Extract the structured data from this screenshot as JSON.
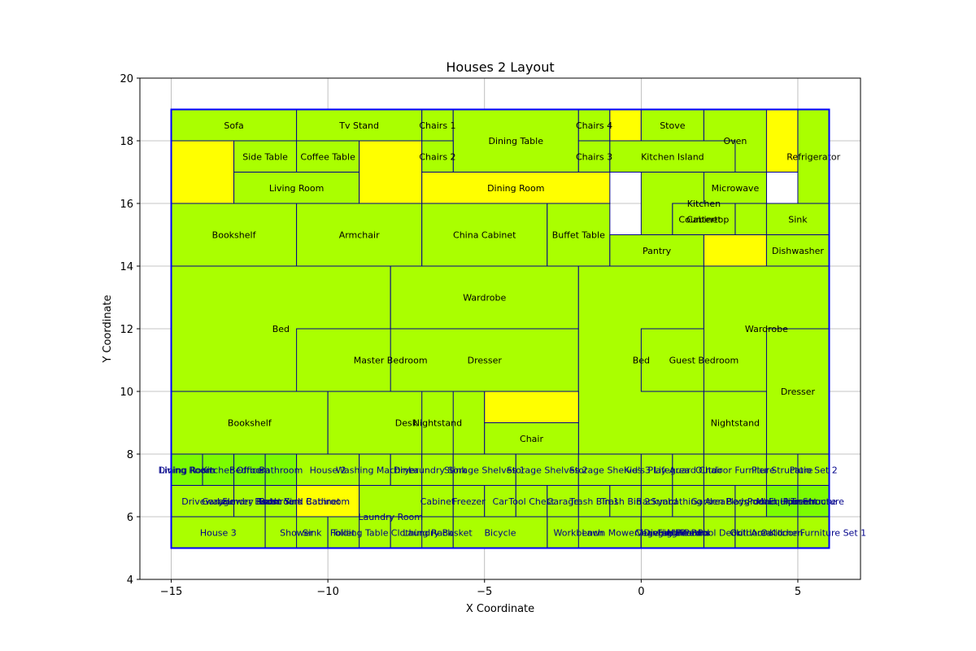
{
  "chart_data": {
    "type": "layout",
    "title": "Houses 2 Layout",
    "xlabel": "X Coordinate",
    "ylabel": "Y Coordinate",
    "xlim": [
      -16,
      7
    ],
    "ylim": [
      4,
      20
    ],
    "xticks": [
      -15,
      -10,
      -5,
      0,
      5
    ],
    "yticks": [
      4,
      6,
      8,
      10,
      12,
      14,
      16,
      18,
      20
    ],
    "grid": true,
    "colors": {
      "fill_main": "#aaff00",
      "fill_yellow": "#ffff00",
      "fill_green": "#7cfc00",
      "edge_outer": "#0000ff",
      "edge_inner": "#00008b",
      "grid": "#b0b0b0"
    },
    "rooms": [
      {
        "name": "Sofa",
        "x": [
          -15,
          -11
        ],
        "y": [
          18,
          19
        ],
        "fill": "main"
      },
      {
        "name": "Tv Stand",
        "x": [
          -11,
          -7
        ],
        "y": [
          18,
          19
        ],
        "fill": "main"
      },
      {
        "name": "Chairs 1",
        "x": [
          -7,
          -6
        ],
        "y": [
          18,
          19
        ],
        "fill": "main"
      },
      {
        "name": "Dining Table",
        "x": [
          -6,
          -2
        ],
        "y": [
          17,
          19
        ],
        "fill": "main"
      },
      {
        "name": "Chairs 4",
        "x": [
          -2,
          -1
        ],
        "y": [
          18,
          19
        ],
        "fill": "main"
      },
      {
        "name": "",
        "x": [
          -1,
          0
        ],
        "y": [
          18,
          19
        ],
        "fill": "yellow"
      },
      {
        "name": "Stove",
        "x": [
          0,
          2
        ],
        "y": [
          18,
          19
        ],
        "fill": "main"
      },
      {
        "name": "Oven",
        "x": [
          2,
          4
        ],
        "y": [
          17,
          19
        ],
        "fill": "main"
      },
      {
        "name": "",
        "x": [
          4,
          5
        ],
        "y": [
          17,
          19
        ],
        "fill": "yellow"
      },
      {
        "name": "Refrigerator",
        "x": [
          5,
          6
        ],
        "y": [
          16,
          19
        ],
        "fill": "main"
      },
      {
        "name": "",
        "x": [
          -15,
          -13
        ],
        "y": [
          16,
          18
        ],
        "fill": "yellow"
      },
      {
        "name": "Side Table",
        "x": [
          -13,
          -11
        ],
        "y": [
          17,
          18
        ],
        "fill": "main"
      },
      {
        "name": "Coffee Table",
        "x": [
          -11,
          -9
        ],
        "y": [
          17,
          18
        ],
        "fill": "main"
      },
      {
        "name": "Living Room",
        "x": [
          -13,
          -9
        ],
        "y": [
          16,
          17
        ],
        "fill": "main"
      },
      {
        "name": "",
        "x": [
          -9,
          -7
        ],
        "y": [
          16,
          18
        ],
        "fill": "yellow"
      },
      {
        "name": "Chairs 2",
        "x": [
          -7,
          -6
        ],
        "y": [
          17,
          18
        ],
        "fill": "main"
      },
      {
        "name": "Chairs 3",
        "x": [
          -2,
          -1
        ],
        "y": [
          17,
          18
        ],
        "fill": "main"
      },
      {
        "name": "Kitchen Island",
        "x": [
          -1,
          3
        ],
        "y": [
          17,
          18
        ],
        "fill": "main"
      },
      {
        "name": "Dining Room",
        "x": [
          -7,
          -1
        ],
        "y": [
          16,
          17
        ],
        "fill": "yellow"
      },
      {
        "name": "Kitchen",
        "x": [
          0,
          4
        ],
        "y": [
          15,
          17
        ],
        "fill": "main"
      },
      {
        "name": "Microwave",
        "x": [
          2,
          4
        ],
        "y": [
          16,
          17
        ],
        "fill": "main"
      },
      {
        "name": "Cabinet",
        "x": [
          1,
          3
        ],
        "y": [
          15,
          16
        ],
        "fill": "main"
      },
      {
        "name": "Countertop",
        "x": [
          1,
          3
        ],
        "y": [
          15,
          16
        ],
        "fill": "main"
      },
      {
        "name": "Bookshelf",
        "x": [
          -15,
          -11
        ],
        "y": [
          14,
          16
        ],
        "fill": "main"
      },
      {
        "name": "Armchair",
        "x": [
          -11,
          -7
        ],
        "y": [
          14,
          16
        ],
        "fill": "main"
      },
      {
        "name": "China Cabinet",
        "x": [
          -7,
          -3
        ],
        "y": [
          14,
          16
        ],
        "fill": "main"
      },
      {
        "name": "Buffet Table",
        "x": [
          -3,
          -1
        ],
        "y": [
          14,
          16
        ],
        "fill": "main"
      },
      {
        "name": "Sink",
        "x": [
          4,
          6
        ],
        "y": [
          15,
          16
        ],
        "fill": "main"
      },
      {
        "name": "Pantry",
        "x": [
          -1,
          2
        ],
        "y": [
          14,
          15
        ],
        "fill": "main"
      },
      {
        "name": "",
        "x": [
          2,
          4
        ],
        "y": [
          14,
          15
        ],
        "fill": "yellow"
      },
      {
        "name": "Dishwasher",
        "x": [
          4,
          6
        ],
        "y": [
          14,
          15
        ],
        "fill": "main"
      },
      {
        "name": "Bed",
        "x": [
          -15,
          -8
        ],
        "y": [
          10,
          14
        ],
        "fill": "main"
      },
      {
        "name": "Wardrobe",
        "x": [
          -8,
          -2
        ],
        "y": [
          12,
          14
        ],
        "fill": "main"
      },
      {
        "name": "Master Bedroom",
        "x": [
          -11,
          -5
        ],
        "y": [
          10,
          12
        ],
        "fill": "main"
      },
      {
        "name": "Dresser",
        "x": [
          -8,
          -2
        ],
        "y": [
          10,
          12
        ],
        "fill": "main"
      },
      {
        "name": "Bed",
        "x": [
          -2,
          2
        ],
        "y": [
          8,
          14
        ],
        "fill": "main"
      },
      {
        "name": "Guest Bedroom",
        "x": [
          0,
          4
        ],
        "y": [
          10,
          12
        ],
        "fill": "main"
      },
      {
        "name": "Wardrobe",
        "x": [
          2,
          6
        ],
        "y": [
          10,
          14
        ],
        "fill": "main"
      },
      {
        "name": "Dresser",
        "x": [
          4,
          6
        ],
        "y": [
          8,
          12
        ],
        "fill": "main"
      },
      {
        "name": "Bookshelf",
        "x": [
          -15,
          -10
        ],
        "y": [
          8,
          10
        ],
        "fill": "main"
      },
      {
        "name": "Desk",
        "x": [
          -10,
          -5
        ],
        "y": [
          8,
          10
        ],
        "fill": "main"
      },
      {
        "name": "Nightstand",
        "x": [
          -7,
          -6
        ],
        "y": [
          8,
          10
        ],
        "fill": "main"
      },
      {
        "name": "",
        "x": [
          -5,
          -2
        ],
        "y": [
          9,
          10
        ],
        "fill": "yellow"
      },
      {
        "name": "Chair",
        "x": [
          -5,
          -2
        ],
        "y": [
          8,
          9
        ],
        "fill": "main"
      },
      {
        "name": "Nightstand",
        "x": [
          2,
          4
        ],
        "y": [
          8,
          10
        ],
        "fill": "main"
      },
      {
        "name": "Dining Room",
        "x": [
          -15,
          -14
        ],
        "y": [
          7,
          8
        ],
        "fill": "green"
      },
      {
        "name": "Office",
        "x": [
          -13,
          -12
        ],
        "y": [
          7,
          8
        ],
        "fill": "main"
      },
      {
        "name": "Living Room",
        "x": [
          -15,
          -14
        ],
        "y": [
          7,
          8
        ],
        "fill": "green"
      },
      {
        "name": "Kitchen",
        "x": [
          -14,
          -13
        ],
        "y": [
          7,
          8
        ],
        "fill": "green"
      },
      {
        "name": "Bedroom",
        "x": [
          -13,
          -12
        ],
        "y": [
          7,
          8
        ],
        "fill": "green"
      },
      {
        "name": "Bathroom",
        "x": [
          -12,
          -11
        ],
        "y": [
          7,
          8
        ],
        "fill": "green"
      },
      {
        "name": "House 2",
        "x": [
          -11,
          -9
        ],
        "y": [
          7,
          8
        ],
        "fill": "main"
      },
      {
        "name": "Washing Machine",
        "x": [
          -9,
          -8
        ],
        "y": [
          7,
          8
        ],
        "fill": "main"
      },
      {
        "name": "Dryer",
        "x": [
          -8,
          -7
        ],
        "y": [
          7,
          8
        ],
        "fill": "main"
      },
      {
        "name": "Laundry Sink",
        "x": [
          -7,
          -6
        ],
        "y": [
          7,
          8
        ],
        "fill": "main"
      },
      {
        "name": "Storage Shelves 1",
        "x": [
          -6,
          -4
        ],
        "y": [
          7,
          8
        ],
        "fill": "main"
      },
      {
        "name": "Storage Shelves 2",
        "x": [
          -4,
          -2
        ],
        "y": [
          7,
          8
        ],
        "fill": "main"
      },
      {
        "name": "Storage Shelves 3",
        "x": [
          -2,
          0
        ],
        "y": [
          7,
          8
        ],
        "fill": "main"
      },
      {
        "name": "Kid's Play Area",
        "x": [
          0,
          1
        ],
        "y": [
          7,
          8
        ],
        "fill": "main"
      },
      {
        "name": "Lifeguard Chair",
        "x": [
          1,
          2
        ],
        "y": [
          7,
          8
        ],
        "fill": "main"
      },
      {
        "name": "Outdoor Furniture",
        "x": [
          2,
          4
        ],
        "y": [
          7,
          8
        ],
        "fill": "main"
      },
      {
        "name": "Pier Structure",
        "x": [
          4,
          5
        ],
        "y": [
          7,
          8
        ],
        "fill": "main"
      },
      {
        "name": "Patio Set 2",
        "x": [
          5,
          6
        ],
        "y": [
          7,
          8
        ],
        "fill": "main"
      },
      {
        "name": "Garage",
        "x": [
          -14,
          -13
        ],
        "y": [
          6,
          7
        ],
        "fill": "green"
      },
      {
        "name": "Laundry Room",
        "x": [
          -13,
          -12
        ],
        "y": [
          6,
          7
        ],
        "fill": "green"
      },
      {
        "name": "Bathroom",
        "x": [
          -12,
          -11
        ],
        "y": [
          6,
          7
        ],
        "fill": "green"
      },
      {
        "name": "Sink Cabinet",
        "x": [
          -11,
          -10
        ],
        "y": [
          6,
          7
        ],
        "fill": "main"
      },
      {
        "name": "Main House",
        "x": [
          4,
          5
        ],
        "y": [
          6,
          7
        ],
        "fill": "main"
      },
      {
        "name": "Treehouse",
        "x": [
          5,
          6
        ],
        "y": [
          6,
          7
        ],
        "fill": "main"
      },
      {
        "name": "Driveway",
        "x": [
          -15,
          -13
        ],
        "y": [
          6,
          7
        ],
        "fill": "main"
      },
      {
        "name": "Flower Beds",
        "x": [
          -13,
          -12
        ],
        "y": [
          6,
          7
        ],
        "fill": "main"
      },
      {
        "name": "Front Yard",
        "x": [
          -12,
          -11
        ],
        "y": [
          6,
          7
        ],
        "fill": "main"
      },
      {
        "name": "Bathroom",
        "x": [
          -11,
          -9
        ],
        "y": [
          6,
          7
        ],
        "fill": "yellow"
      },
      {
        "name": "Laundry Room",
        "x": [
          -9,
          -7
        ],
        "y": [
          5,
          7
        ],
        "fill": "main"
      },
      {
        "name": "Cabinet",
        "x": [
          -7,
          -6
        ],
        "y": [
          6,
          7
        ],
        "fill": "main"
      },
      {
        "name": "Freezer",
        "x": [
          -6,
          -5
        ],
        "y": [
          6,
          7
        ],
        "fill": "main"
      },
      {
        "name": "Car",
        "x": [
          -5,
          -4
        ],
        "y": [
          6,
          7
        ],
        "fill": "main"
      },
      {
        "name": "Tool Chest",
        "x": [
          -4,
          -3
        ],
        "y": [
          6,
          7
        ],
        "fill": "main"
      },
      {
        "name": "Garage",
        "x": [
          -3,
          -2
        ],
        "y": [
          6,
          7
        ],
        "fill": "main"
      },
      {
        "name": "Trash Bin 1",
        "x": [
          -2,
          -1
        ],
        "y": [
          6,
          7
        ],
        "fill": "main"
      },
      {
        "name": "Trash Bin 2",
        "x": [
          -1,
          0
        ],
        "y": [
          6,
          7
        ],
        "fill": "main"
      },
      {
        "name": "Backyard",
        "x": [
          0,
          1
        ],
        "y": [
          6,
          7
        ],
        "fill": "main"
      },
      {
        "name": "Sunbathing Area",
        "x": [
          1,
          2
        ],
        "y": [
          6,
          7
        ],
        "fill": "main"
      },
      {
        "name": "Garden Beds",
        "x": [
          2,
          3
        ],
        "y": [
          6,
          7
        ],
        "fill": "main"
      },
      {
        "name": "Playground",
        "x": [
          3,
          4
        ],
        "y": [
          6,
          7
        ],
        "fill": "main"
      },
      {
        "name": "Pool Equipment",
        "x": [
          4,
          5
        ],
        "y": [
          6,
          7
        ],
        "fill": "green"
      },
      {
        "name": "Pier Structure",
        "x": [
          5,
          6
        ],
        "y": [
          6,
          7
        ],
        "fill": "green"
      },
      {
        "name": "Folding Table",
        "x": [
          -10,
          -8
        ],
        "y": [
          5,
          6
        ],
        "fill": "main"
      },
      {
        "name": "Clothing Rack",
        "x": [
          -8,
          -6
        ],
        "y": [
          5,
          6
        ],
        "fill": "main"
      },
      {
        "name": "Workbench",
        "x": [
          -3,
          -1
        ],
        "y": [
          5,
          6
        ],
        "fill": "main"
      },
      {
        "name": "Lawn Mower",
        "x": [
          -2,
          0
        ],
        "y": [
          5,
          6
        ],
        "fill": "main"
      },
      {
        "name": "Main Pool",
        "x": [
          0,
          3
        ],
        "y": [
          5,
          6
        ],
        "fill": "main"
      },
      {
        "name": "Pool Deck",
        "x": [
          2,
          3
        ],
        "y": [
          5,
          6
        ],
        "fill": "main"
      },
      {
        "name": "House 3",
        "x": [
          -15,
          -12
        ],
        "y": [
          5,
          6
        ],
        "fill": "main"
      },
      {
        "name": "Shower",
        "x": [
          -12,
          -10
        ],
        "y": [
          5,
          6
        ],
        "fill": "main"
      },
      {
        "name": "Sink",
        "x": [
          -11,
          -10
        ],
        "y": [
          5,
          6
        ],
        "fill": "main"
      },
      {
        "name": "Toilet",
        "x": [
          -10,
          -9
        ],
        "y": [
          5,
          6
        ],
        "fill": "main"
      },
      {
        "name": "Laundry Basket",
        "x": [
          -7,
          -6
        ],
        "y": [
          5,
          6
        ],
        "fill": "main"
      },
      {
        "name": "Bicycle",
        "x": [
          -6,
          -3
        ],
        "y": [
          5,
          6
        ],
        "fill": "main"
      },
      {
        "name": "Fire Pit",
        "x": [
          0,
          2
        ],
        "y": [
          5,
          6
        ],
        "fill": "main"
      },
      {
        "name": "Vegetable Patch",
        "x": [
          0,
          2
        ],
        "y": [
          5,
          6
        ],
        "fill": "main"
      },
      {
        "name": "Diving Board",
        "x": [
          0,
          2
        ],
        "y": [
          5,
          6
        ],
        "fill": "main"
      },
      {
        "name": "Changing Rooms",
        "x": [
          0,
          2
        ],
        "y": [
          5,
          6
        ],
        "fill": "main"
      },
      {
        "name": "Grill Area",
        "x": [
          3,
          4
        ],
        "y": [
          5,
          6
        ],
        "fill": "main"
      },
      {
        "name": "Outdoor Kitchen",
        "x": [
          3,
          5
        ],
        "y": [
          5,
          6
        ],
        "fill": "main"
      },
      {
        "name": "Outdoor Furniture Set 1",
        "x": [
          5,
          6
        ],
        "y": [
          5,
          6
        ],
        "fill": "main"
      }
    ],
    "outer_boundary": {
      "x": [
        -15,
        6
      ],
      "y": [
        5,
        19
      ]
    }
  }
}
